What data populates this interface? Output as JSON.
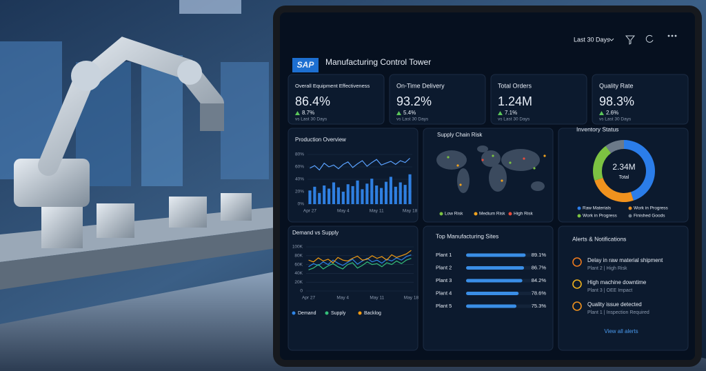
{
  "header": {
    "logo": "SAP",
    "title": "Manufacturing Control Tower",
    "period": "Last 30 Days"
  },
  "kpis": [
    {
      "label": "Overall Equipment Effectiveness",
      "value": "86.4%",
      "change": "8.7%",
      "note": "vs Last 30 Days"
    },
    {
      "label": "On-Time Delivery",
      "value": "93.2%",
      "change": "5.4%",
      "note": "vs Last 30 Days"
    },
    {
      "label": "Total Orders",
      "value": "1.24M",
      "change": "7.1%",
      "note": "vs Last 30 Days"
    },
    {
      "label": "Quality Rate",
      "value": "98.3%",
      "change": "2.6%",
      "note": "vs Last 30 Days"
    }
  ],
  "production": {
    "type": "bar",
    "title": "Production Overview",
    "color": "#2f7fe0",
    "line_color": "#5aa2ff",
    "categories": [
      "Apr 27",
      null,
      null,
      null,
      null,
      null,
      null,
      "May 4",
      null,
      null,
      null,
      null,
      null,
      null,
      "May 11",
      null,
      null,
      null,
      null,
      null,
      null,
      "May 18"
    ],
    "values": [
      22,
      28,
      18,
      30,
      25,
      35,
      27,
      20,
      32,
      29,
      38,
      24,
      33,
      41,
      30,
      26,
      36,
      44,
      28,
      35,
      31,
      48
    ],
    "line": [
      58,
      62,
      55,
      66,
      60,
      63,
      57,
      64,
      68,
      59,
      65,
      70,
      61,
      67,
      72,
      63,
      66,
      69,
      64,
      70,
      67,
      74
    ],
    "ylim": [
      0,
      80
    ],
    "yticks": [
      {
        "value": 0,
        "label": "0%"
      },
      {
        "value": 20,
        "label": "20%"
      },
      {
        "value": 40,
        "label": "40%"
      },
      {
        "value": 60,
        "label": "60%"
      },
      {
        "value": 80,
        "label": "80%"
      }
    ],
    "grid": true
  },
  "supply_risk": {
    "title": "Supply Chain Risk",
    "legend": [
      {
        "name": "Low Risk",
        "color": "#7cc242"
      },
      {
        "name": "Medium Risk",
        "color": "#f0a21e"
      },
      {
        "name": "High Risk",
        "color": "#e74c3c"
      }
    ]
  },
  "inventory": {
    "type": "pie",
    "title": "Inventory Status",
    "center_value": "2.34M",
    "center_label": "Total",
    "categories": [
      "Raw Materials",
      "Work in Progress",
      "Work in Progress",
      "Finished Goods"
    ],
    "values": [
      45,
      25,
      20,
      10
    ],
    "colors": [
      "#2b7de9",
      "#f0921e",
      "#7cc242",
      "#6c7a89"
    ]
  },
  "demand": {
    "type": "line",
    "title": "Demand vs Supply",
    "categories": [
      "Apr 27",
      null,
      null,
      null,
      null,
      null,
      null,
      "May 4",
      null,
      null,
      null,
      null,
      null,
      null,
      "May 11",
      null,
      null,
      null,
      null,
      null,
      null,
      "May 18"
    ],
    "series": [
      {
        "name": "Demand",
        "color": "#2f86e8",
        "values": [
          55000,
          62000,
          58000,
          66000,
          60000,
          70000,
          63000,
          58000,
          65000,
          72000,
          61000,
          68000,
          74000,
          66000,
          70000,
          63000,
          72000,
          68000,
          75000,
          70000,
          78000,
          82000
        ]
      },
      {
        "name": "Supply",
        "color": "#35c07a",
        "values": [
          48000,
          52000,
          60000,
          50000,
          57000,
          62000,
          55000,
          50000,
          60000,
          64000,
          52000,
          58000,
          66000,
          60000,
          62000,
          55000,
          64000,
          60000,
          68000,
          62000,
          70000,
          74000
        ]
      },
      {
        "name": "Backlog",
        "color": "#f39c12",
        "values": [
          70000,
          66000,
          75000,
          68000,
          72000,
          64000,
          76000,
          70000,
          68000,
          74000,
          79000,
          70000,
          72000,
          80000,
          74000,
          78000,
          70000,
          82000,
          76000,
          80000,
          84000,
          92000
        ]
      }
    ],
    "ylim": [
      0,
      100000
    ],
    "yticks": [
      0,
      {
        "value": 20000,
        "label": "20K"
      },
      {
        "value": 40000,
        "label": "40K"
      },
      {
        "value": 60000,
        "label": "60K"
      },
      {
        "value": 80000,
        "label": "80K"
      },
      {
        "value": 100000,
        "label": "100K"
      }
    ],
    "grid": true
  },
  "sites": {
    "type": "bar",
    "title": "Top Manufacturing Sites",
    "color": "#3a8ee6",
    "categories": [
      "Plant 1",
      "Plant 2",
      "Plant 3",
      "Plant 4",
      "Plant 5"
    ],
    "values": [
      89.1,
      86.7,
      84.2,
      78.6,
      75.3
    ],
    "value_labels": [
      "89.1%",
      "86.7%",
      "84.2%",
      "78.6%",
      "75.3%"
    ]
  },
  "alerts": {
    "title": "Alerts & Notifications",
    "items": [
      {
        "title": "Delay in raw material shipment",
        "detail": "Plant 2 | High Risk"
      },
      {
        "title": "High machine downtime",
        "detail": "Plant 3 | OEE Impact"
      },
      {
        "title": "Quality issue detected",
        "detail": "Plant 1 | Inspection Required"
      }
    ],
    "link": "View all alerts"
  }
}
